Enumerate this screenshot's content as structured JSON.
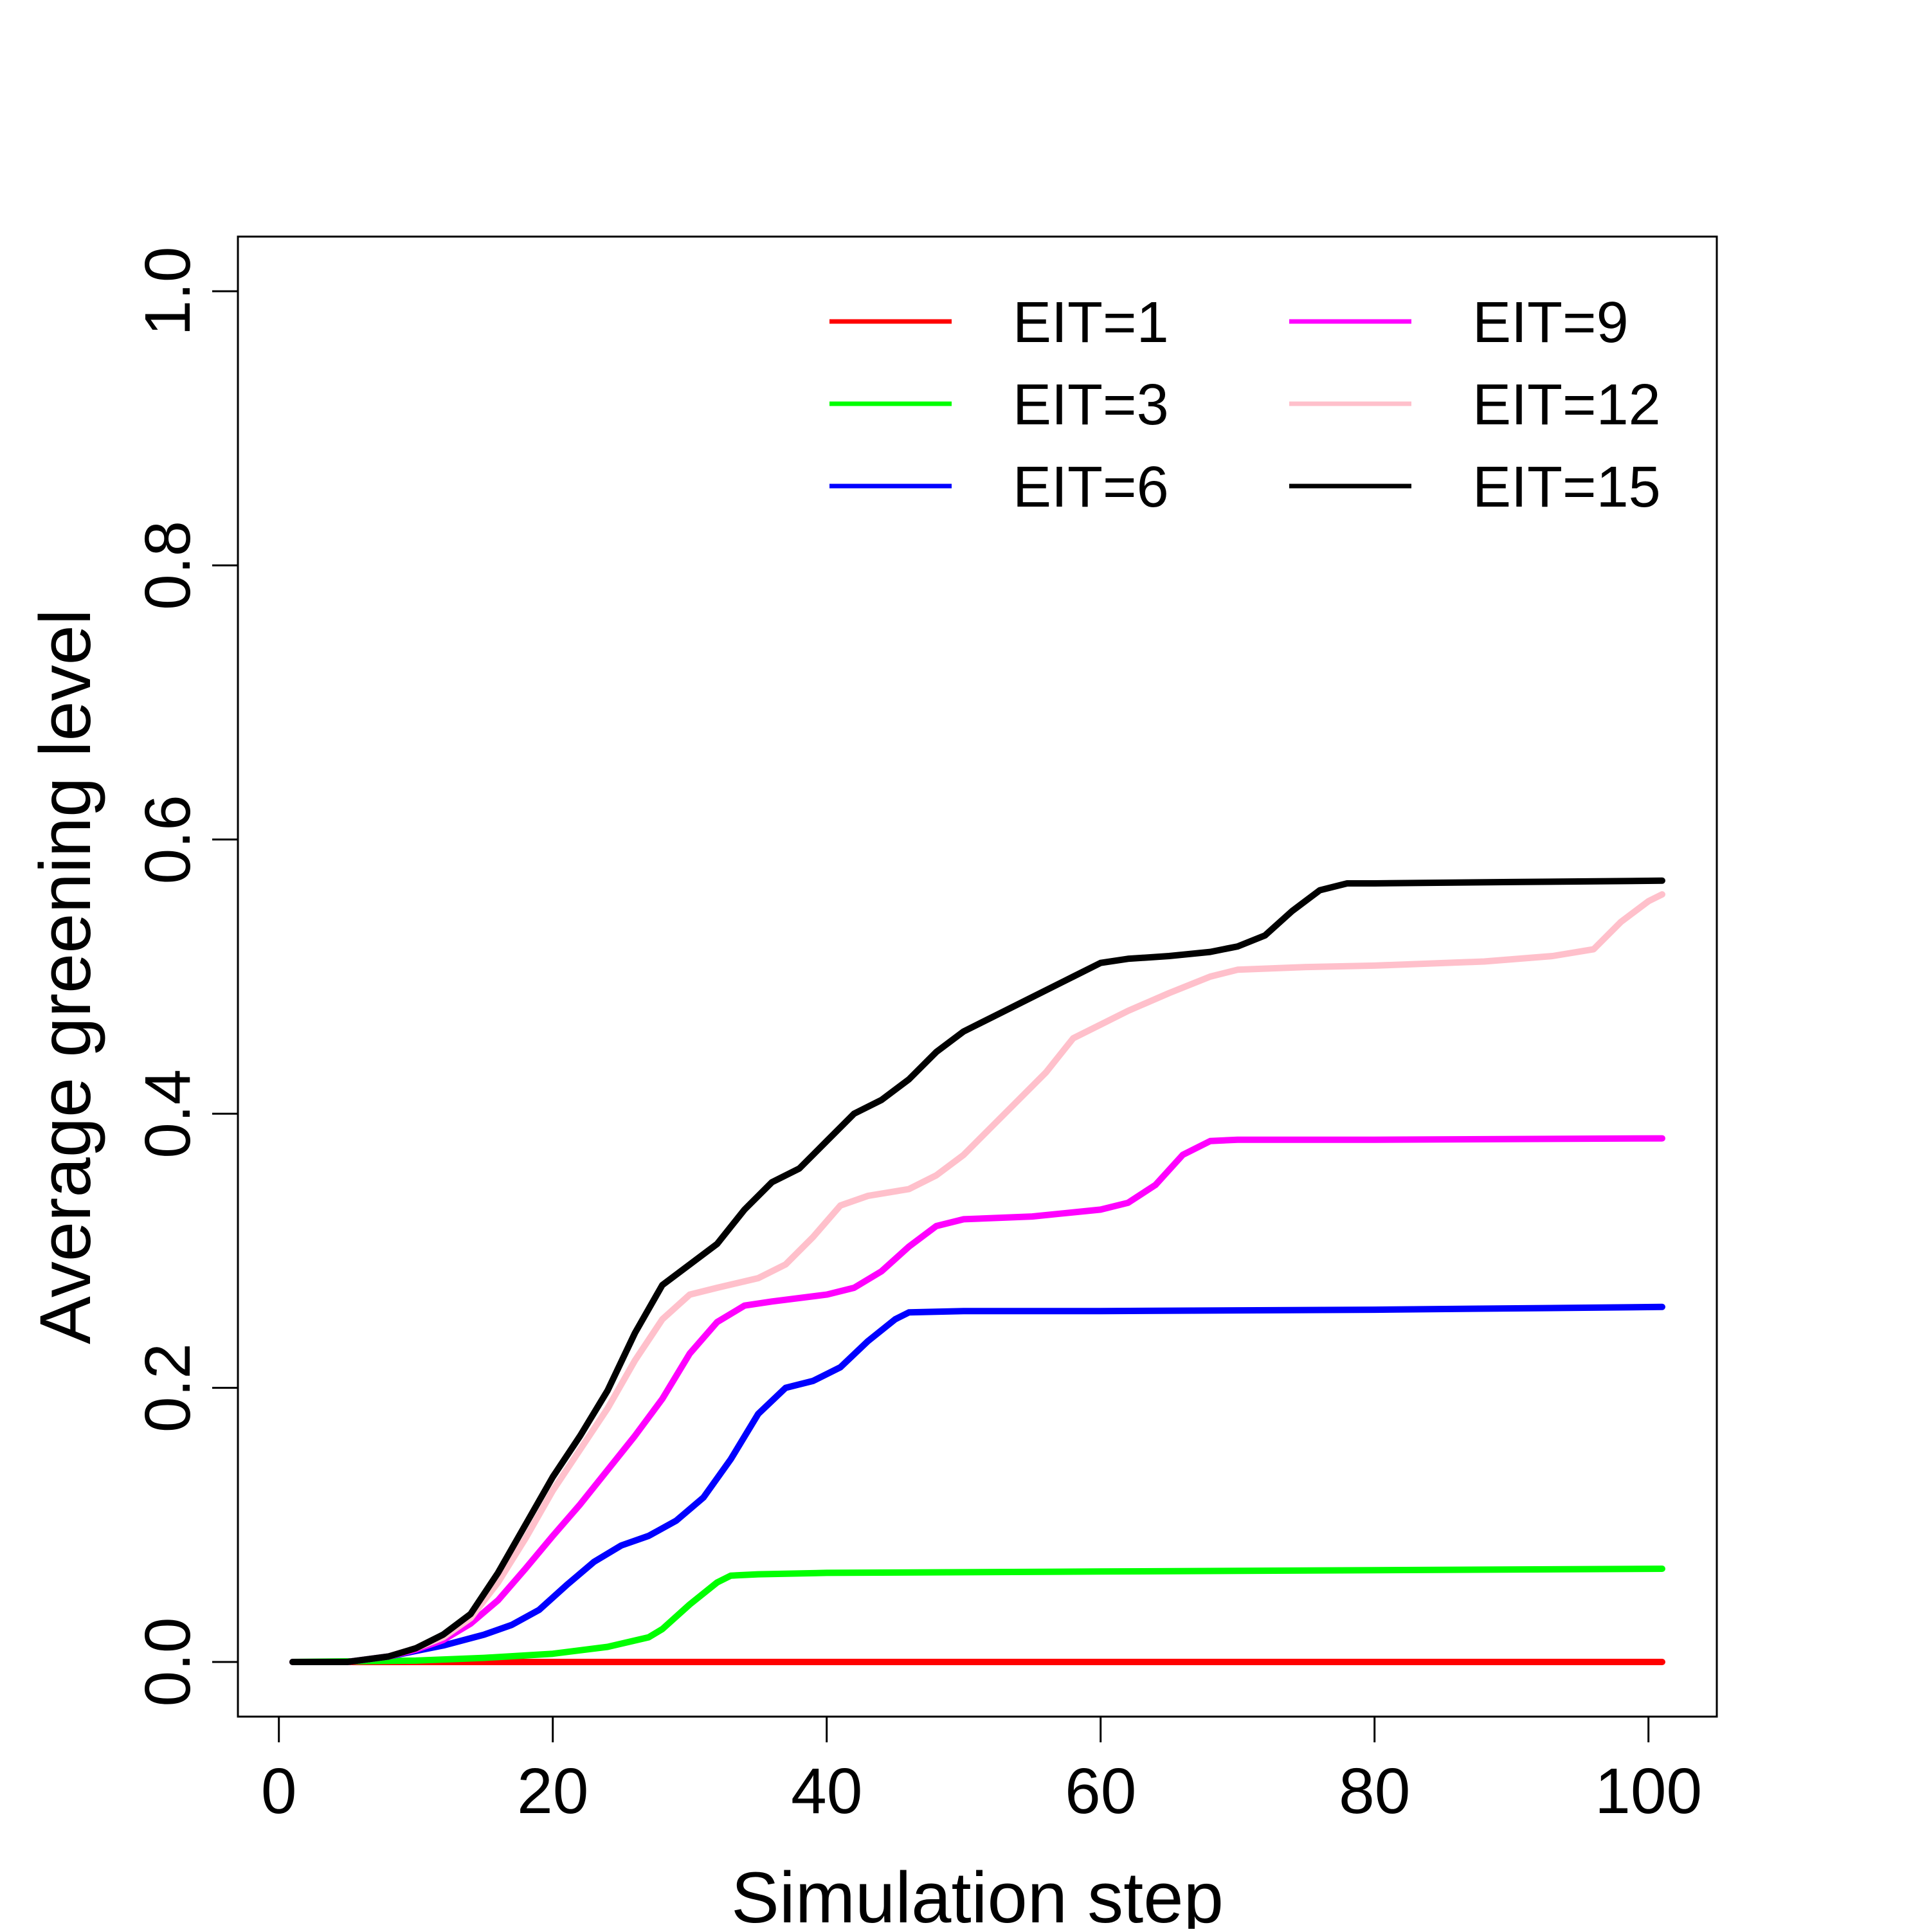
{
  "chart_data": {
    "type": "line",
    "title": "",
    "xlabel": "Simulation step",
    "ylabel": "Average greening level",
    "xlim": [
      1,
      101
    ],
    "ylim": [
      0,
      1
    ],
    "x_ticks": [
      0,
      20,
      40,
      60,
      80,
      100
    ],
    "x_tick_labels": [
      "0",
      "20",
      "40",
      "60",
      "80",
      "100"
    ],
    "y_ticks": [
      0,
      0.2,
      0.4,
      0.6,
      0.8,
      1
    ],
    "y_tick_labels": [
      "0.0",
      "0.2",
      "0.4",
      "0.6",
      "0.8",
      "1.0"
    ],
    "grid": false,
    "legend_position": "top-right",
    "series": [
      {
        "name": "EIT=1",
        "color": "#ff0000",
        "points": [
          [
            1,
            0
          ],
          [
            20,
            0
          ],
          [
            40,
            0
          ],
          [
            60,
            0
          ],
          [
            80,
            0
          ],
          [
            101,
            0
          ]
        ]
      },
      {
        "name": "EIT=3",
        "color": "#00ff00",
        "points": [
          [
            1,
            0
          ],
          [
            10,
            0.001
          ],
          [
            15,
            0.003
          ],
          [
            20,
            0.006
          ],
          [
            24,
            0.011
          ],
          [
            27,
            0.018
          ],
          [
            28,
            0.024
          ],
          [
            30,
            0.042
          ],
          [
            32,
            0.058
          ],
          [
            33,
            0.063
          ],
          [
            35,
            0.064
          ],
          [
            40,
            0.065
          ],
          [
            60,
            0.066
          ],
          [
            80,
            0.067
          ],
          [
            101,
            0.068
          ]
        ]
      },
      {
        "name": "EIT=6",
        "color": "#0000ff",
        "points": [
          [
            1,
            0
          ],
          [
            5,
            0
          ],
          [
            8,
            0.004
          ],
          [
            10,
            0.008
          ],
          [
            12,
            0.012
          ],
          [
            15,
            0.02
          ],
          [
            17,
            0.027
          ],
          [
            19,
            0.038
          ],
          [
            21,
            0.056
          ],
          [
            23,
            0.073
          ],
          [
            25,
            0.085
          ],
          [
            27,
            0.092
          ],
          [
            29,
            0.103
          ],
          [
            31,
            0.12
          ],
          [
            33,
            0.148
          ],
          [
            35,
            0.181
          ],
          [
            37,
            0.2
          ],
          [
            39,
            0.205
          ],
          [
            41,
            0.215
          ],
          [
            43,
            0.234
          ],
          [
            45,
            0.25
          ],
          [
            46,
            0.255
          ],
          [
            50,
            0.256
          ],
          [
            60,
            0.256
          ],
          [
            80,
            0.257
          ],
          [
            101,
            0.259
          ]
        ]
      },
      {
        "name": "EIT=9",
        "color": "#ff00ff",
        "points": [
          [
            1,
            0
          ],
          [
            5,
            0
          ],
          [
            8,
            0.004
          ],
          [
            10,
            0.009
          ],
          [
            12,
            0.016
          ],
          [
            14,
            0.028
          ],
          [
            16,
            0.045
          ],
          [
            18,
            0.068
          ],
          [
            20,
            0.092
          ],
          [
            22,
            0.115
          ],
          [
            24,
            0.14
          ],
          [
            26,
            0.165
          ],
          [
            28,
            0.192
          ],
          [
            30,
            0.225
          ],
          [
            32,
            0.248
          ],
          [
            34,
            0.26
          ],
          [
            36,
            0.263
          ],
          [
            40,
            0.268
          ],
          [
            42,
            0.273
          ],
          [
            44,
            0.285
          ],
          [
            46,
            0.303
          ],
          [
            48,
            0.318
          ],
          [
            50,
            0.323
          ],
          [
            55,
            0.325
          ],
          [
            60,
            0.33
          ],
          [
            62,
            0.335
          ],
          [
            64,
            0.348
          ],
          [
            66,
            0.37
          ],
          [
            68,
            0.38
          ],
          [
            70,
            0.381
          ],
          [
            80,
            0.381
          ],
          [
            101,
            0.382
          ]
        ]
      },
      {
        "name": "EIT=12",
        "color": "#ffc0cb",
        "points": [
          [
            1,
            0
          ],
          [
            5,
            0
          ],
          [
            8,
            0.004
          ],
          [
            10,
            0.01
          ],
          [
            12,
            0.018
          ],
          [
            14,
            0.032
          ],
          [
            16,
            0.058
          ],
          [
            18,
            0.09
          ],
          [
            20,
            0.125
          ],
          [
            22,
            0.155
          ],
          [
            24,
            0.185
          ],
          [
            26,
            0.22
          ],
          [
            28,
            0.25
          ],
          [
            30,
            0.268
          ],
          [
            32,
            0.273
          ],
          [
            35,
            0.28
          ],
          [
            37,
            0.29
          ],
          [
            39,
            0.31
          ],
          [
            41,
            0.333
          ],
          [
            43,
            0.34
          ],
          [
            46,
            0.345
          ],
          [
            48,
            0.355
          ],
          [
            50,
            0.37
          ],
          [
            52,
            0.39
          ],
          [
            54,
            0.41
          ],
          [
            56,
            0.43
          ],
          [
            58,
            0.455
          ],
          [
            60,
            0.465
          ],
          [
            62,
            0.475
          ],
          [
            65,
            0.488
          ],
          [
            68,
            0.5
          ],
          [
            70,
            0.505
          ],
          [
            75,
            0.507
          ],
          [
            80,
            0.508
          ],
          [
            88,
            0.511
          ],
          [
            93,
            0.515
          ],
          [
            96,
            0.52
          ],
          [
            98,
            0.54
          ],
          [
            100,
            0.555
          ],
          [
            101,
            0.56
          ]
        ]
      },
      {
        "name": "EIT=15",
        "color": "#000000",
        "points": [
          [
            1,
            0
          ],
          [
            5,
            0
          ],
          [
            8,
            0.004
          ],
          [
            10,
            0.01
          ],
          [
            12,
            0.02
          ],
          [
            14,
            0.035
          ],
          [
            16,
            0.065
          ],
          [
            18,
            0.1
          ],
          [
            20,
            0.135
          ],
          [
            22,
            0.165
          ],
          [
            24,
            0.198
          ],
          [
            26,
            0.24
          ],
          [
            28,
            0.275
          ],
          [
            30,
            0.29
          ],
          [
            32,
            0.305
          ],
          [
            34,
            0.33
          ],
          [
            36,
            0.35
          ],
          [
            38,
            0.36
          ],
          [
            40,
            0.38
          ],
          [
            42,
            0.4
          ],
          [
            44,
            0.41
          ],
          [
            46,
            0.425
          ],
          [
            48,
            0.445
          ],
          [
            50,
            0.46
          ],
          [
            52,
            0.47
          ],
          [
            55,
            0.485
          ],
          [
            58,
            0.5
          ],
          [
            60,
            0.51
          ],
          [
            62,
            0.513
          ],
          [
            65,
            0.515
          ],
          [
            68,
            0.518
          ],
          [
            70,
            0.522
          ],
          [
            72,
            0.53
          ],
          [
            74,
            0.548
          ],
          [
            76,
            0.563
          ],
          [
            78,
            0.568
          ],
          [
            80,
            0.568
          ],
          [
            90,
            0.569
          ],
          [
            101,
            0.57
          ]
        ]
      }
    ]
  }
}
